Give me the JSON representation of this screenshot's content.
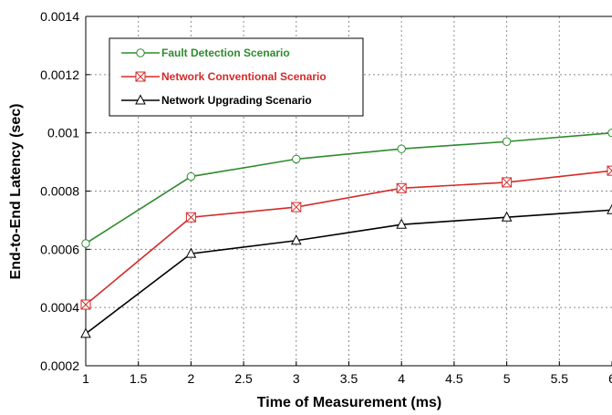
{
  "chart_data": {
    "type": "line",
    "title": "",
    "xlabel": "Time of Measurement (ms)",
    "ylabel": "End-to-End Latency (sec)",
    "xlim": [
      1,
      6
    ],
    "ylim": [
      0.0002,
      0.0014
    ],
    "x_ticks": [
      "1",
      "1.5",
      "2",
      "2.5",
      "3",
      "3.5",
      "4",
      "4.5",
      "5",
      "5.5",
      "6"
    ],
    "y_ticks": [
      "0.0002",
      "0.0004",
      "0.0006",
      "0.0008",
      "0.001",
      "0.0012",
      "0.0014"
    ],
    "grid": true,
    "legend_position": "top-left",
    "x": [
      1,
      2,
      3,
      4,
      5,
      6
    ],
    "series": [
      {
        "name": "Fault Detection Scenario",
        "color": "#2e8b2e",
        "marker": "circle",
        "values": [
          0.00062,
          0.00085,
          0.00091,
          0.000945,
          0.00097,
          0.001
        ]
      },
      {
        "name": "Network Conventional Scenario",
        "color": "#d42a2a",
        "marker": "x-box",
        "values": [
          0.00041,
          0.00071,
          0.000745,
          0.00081,
          0.00083,
          0.00087
        ]
      },
      {
        "name": "Network Upgrading Scenario",
        "color": "#000000",
        "marker": "triangle",
        "values": [
          0.00031,
          0.000585,
          0.00063,
          0.000685,
          0.00071,
          0.000735
        ]
      }
    ]
  }
}
